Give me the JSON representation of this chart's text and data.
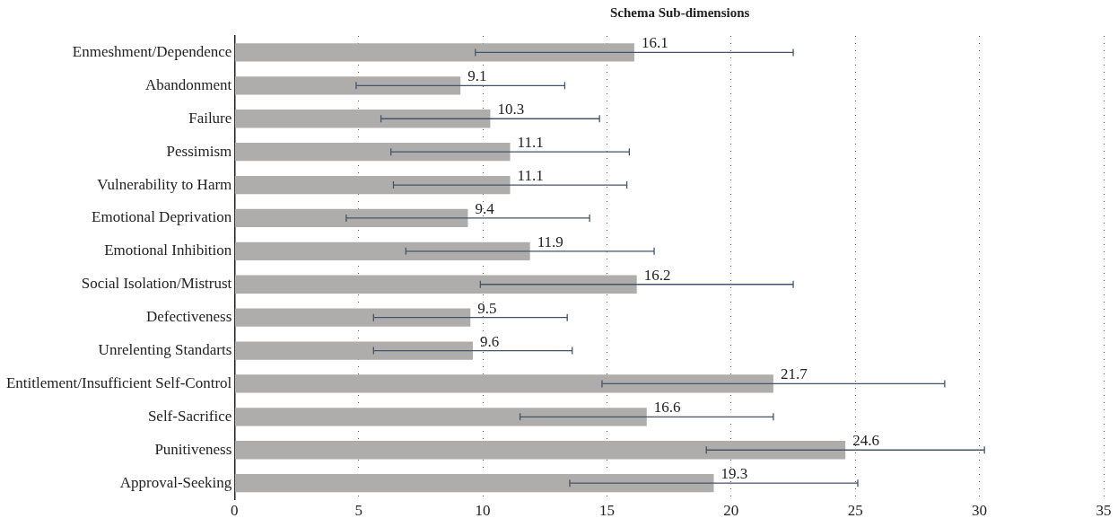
{
  "chart_data": {
    "type": "bar",
    "orientation": "horizontal",
    "title": "Schema Sub-dimensions",
    "categories": [
      "Enmeshment/Dependence",
      "Abandonment",
      "Failure",
      "Pessimism",
      "Vulnerability to Harm",
      "Emotional Deprivation",
      "Emotional Inhibition",
      "Social Isolation/Mistrust",
      "Defectiveness",
      "Unrelenting Standarts",
      "Entitlement/Insufficient Self-Control",
      "Self-Sacrifice",
      "Punitiveness",
      "Approval-Seeking"
    ],
    "values": [
      16.1,
      9.1,
      10.3,
      11.1,
      11.1,
      9.4,
      11.9,
      16.2,
      9.5,
      9.6,
      21.7,
      16.6,
      24.6,
      19.3
    ],
    "errors": [
      6.4,
      4.2,
      4.4,
      4.8,
      4.7,
      4.9,
      5.0,
      6.3,
      3.9,
      4.0,
      6.9,
      5.1,
      5.6,
      5.8
    ],
    "color": "#aeadab",
    "data_labels": true,
    "xlim": [
      0,
      35
    ],
    "xticks": [
      0,
      5,
      10,
      15,
      20,
      25,
      30,
      35
    ],
    "grid": "x",
    "legend": false
  }
}
